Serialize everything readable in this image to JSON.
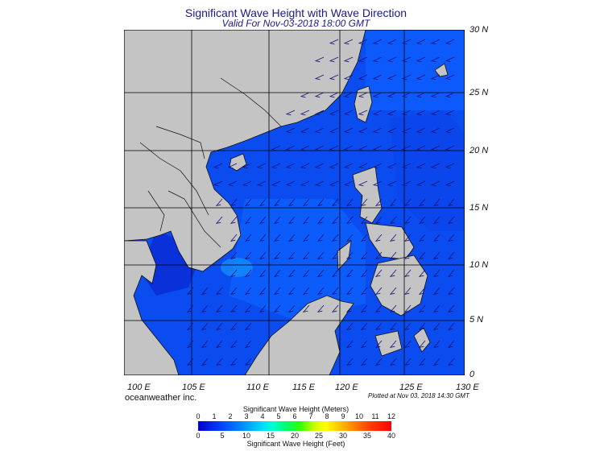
{
  "header": {
    "title": "Significant Wave Height with Wave Direction",
    "subtitle": "Valid For Nov-03-2018 18:00 GMT"
  },
  "map": {
    "lat_labels": [
      "30 N",
      "25 N",
      "20 N",
      "15 N",
      "10 N",
      "5 N",
      "0"
    ],
    "lon_labels": [
      "100 E",
      "105 E",
      "110 E",
      "115 E",
      "120 E",
      "125 E",
      "130 E"
    ],
    "colors": {
      "land": "#c4c4c4",
      "deep_sea": "#1f43e6",
      "sea": "#0a4cf0",
      "higher": "#0d6bff",
      "highest": "#1594ff",
      "lowest": "#0a2bd6",
      "arrow": "#14147a"
    }
  },
  "footer": {
    "credit": "oceanweather inc.",
    "plotted": "Plotted at Nov 03, 2018 14:30 GMT"
  },
  "colorbar": {
    "meters_title": "Significant Wave Height (Meters)",
    "feet_title": "Significant Wave Height (Feet)",
    "meters_ticks": [
      "0",
      "1",
      "2",
      "3",
      "4",
      "5",
      "6",
      "7",
      "8",
      "9",
      "10",
      "11",
      "12"
    ],
    "feet_ticks": [
      "0",
      "5",
      "10",
      "15",
      "20",
      "25",
      "30",
      "35",
      "40"
    ]
  }
}
